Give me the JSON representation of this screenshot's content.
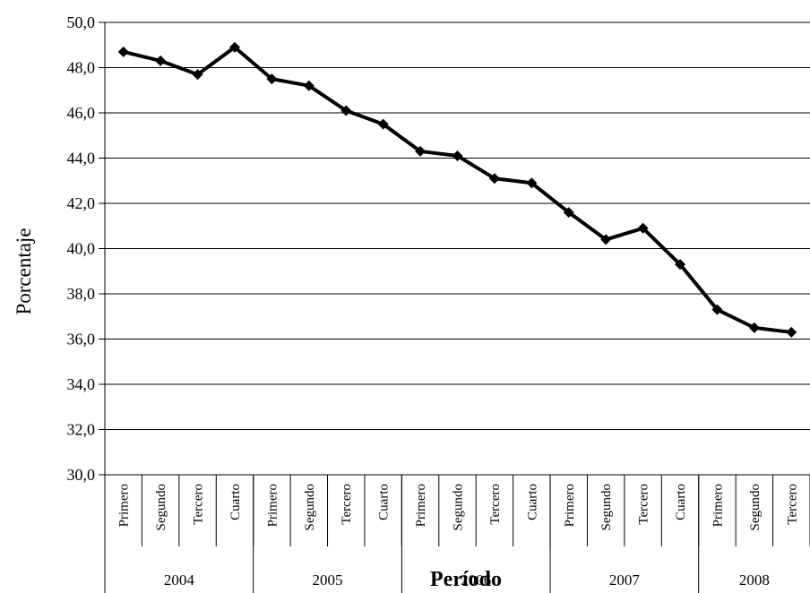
{
  "chart_data": {
    "type": "line",
    "title": "",
    "xlabel": "Período",
    "ylabel": "Porcentaje",
    "ylim": [
      30,
      50
    ],
    "y_ticks": [
      "30,0",
      "32,0",
      "34,0",
      "36,0",
      "38,0",
      "40,0",
      "42,0",
      "44,0",
      "46,0",
      "48,0",
      "50,0"
    ],
    "grid": true,
    "legend": "none",
    "line_color": "#000000",
    "categories": [
      {
        "year": "2004",
        "quarter": "Primero"
      },
      {
        "year": "2004",
        "quarter": "Segundo"
      },
      {
        "year": "2004",
        "quarter": "Tercero"
      },
      {
        "year": "2004",
        "quarter": "Cuarto"
      },
      {
        "year": "2005",
        "quarter": "Primero"
      },
      {
        "year": "2005",
        "quarter": "Segundo"
      },
      {
        "year": "2005",
        "quarter": "Tercero"
      },
      {
        "year": "2005",
        "quarter": "Cuarto"
      },
      {
        "year": "2006",
        "quarter": "Primero"
      },
      {
        "year": "2006",
        "quarter": "Segundo"
      },
      {
        "year": "2006",
        "quarter": "Tercero"
      },
      {
        "year": "2006",
        "quarter": "Cuarto"
      },
      {
        "year": "2007",
        "quarter": "Primero"
      },
      {
        "year": "2007",
        "quarter": "Segundo"
      },
      {
        "year": "2007",
        "quarter": "Tercero"
      },
      {
        "year": "2007",
        "quarter": "Cuarto"
      },
      {
        "year": "2008",
        "quarter": "Primero"
      },
      {
        "year": "2008",
        "quarter": "Segundo"
      },
      {
        "year": "2008",
        "quarter": "Tercero"
      }
    ],
    "years": [
      "2004",
      "2005",
      "2006",
      "2007",
      "2008"
    ],
    "series": [
      {
        "values": [
          48.7,
          48.3,
          47.7,
          48.9,
          47.5,
          47.2,
          46.1,
          45.5,
          44.3,
          44.1,
          43.1,
          42.9,
          41.6,
          40.4,
          40.9,
          39.3,
          37.3,
          36.5,
          36.3
        ]
      }
    ]
  }
}
